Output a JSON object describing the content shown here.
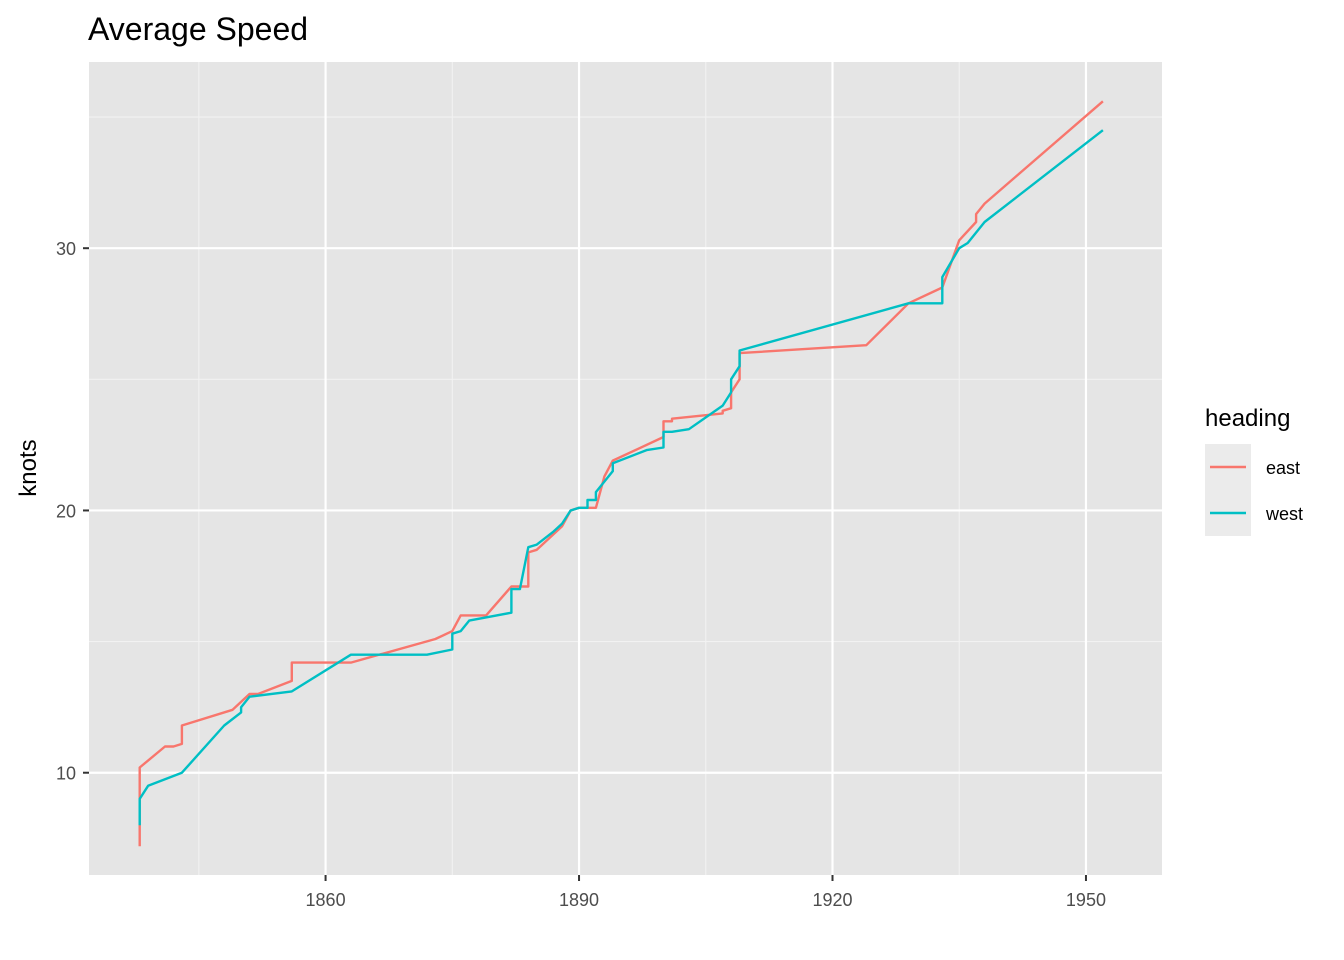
{
  "chart_data": {
    "type": "line",
    "title": "Average Speed",
    "xlabel": "",
    "ylabel": "knots",
    "xlim": [
      1832,
      1959
    ],
    "ylim": [
      6.1,
      37.1
    ],
    "x_ticks": [
      1860,
      1890,
      1920,
      1950
    ],
    "x_tick_labels": [
      "1860",
      "1890",
      "1920",
      "1950"
    ],
    "y_ticks": [
      10,
      20,
      30
    ],
    "y_tick_labels": [
      "10",
      "20",
      "30"
    ],
    "grid": true,
    "legend": {
      "title": "heading",
      "position": "right"
    },
    "series": [
      {
        "name": "east",
        "color": "#F8766D",
        "points": [
          [
            1838,
            7.2
          ],
          [
            1838,
            10.2
          ],
          [
            1841,
            11.0
          ],
          [
            1842,
            11.0
          ],
          [
            1843,
            11.1
          ],
          [
            1843,
            11.8
          ],
          [
            1849,
            12.4
          ],
          [
            1851,
            13.0
          ],
          [
            1852,
            13.0
          ],
          [
            1856,
            13.5
          ],
          [
            1856,
            14.2
          ],
          [
            1863,
            14.2
          ],
          [
            1873,
            15.1
          ],
          [
            1875,
            15.4
          ],
          [
            1876,
            16.0
          ],
          [
            1879,
            16.0
          ],
          [
            1882,
            17.1
          ],
          [
            1884,
            17.1
          ],
          [
            1884,
            18.4
          ],
          [
            1885,
            18.5
          ],
          [
            1888,
            19.4
          ],
          [
            1889,
            20.0
          ],
          [
            1890,
            20.1
          ],
          [
            1892,
            20.1
          ],
          [
            1893,
            21.3
          ],
          [
            1894,
            21.9
          ],
          [
            1900,
            22.8
          ],
          [
            1900,
            23.4
          ],
          [
            1901,
            23.4
          ],
          [
            1901,
            23.5
          ],
          [
            1907,
            23.7
          ],
          [
            1907,
            23.8
          ],
          [
            1908,
            23.9
          ],
          [
            1908,
            24.5
          ],
          [
            1909,
            25.0
          ],
          [
            1909,
            26.0
          ],
          [
            1924,
            26.3
          ],
          [
            1929,
            27.9
          ],
          [
            1933,
            28.5
          ],
          [
            1935,
            30.3
          ],
          [
            1937,
            31.0
          ],
          [
            1937,
            31.3
          ],
          [
            1938,
            31.7
          ],
          [
            1952,
            35.6
          ]
        ]
      },
      {
        "name": "west",
        "color": "#00BFC4",
        "points": [
          [
            1838,
            8.0
          ],
          [
            1838,
            9.0
          ],
          [
            1839,
            9.5
          ],
          [
            1843,
            10.0
          ],
          [
            1848,
            11.8
          ],
          [
            1850,
            12.3
          ],
          [
            1850,
            12.5
          ],
          [
            1851,
            12.9
          ],
          [
            1856,
            13.1
          ],
          [
            1863,
            14.5
          ],
          [
            1872,
            14.5
          ],
          [
            1875,
            14.7
          ],
          [
            1875,
            15.3
          ],
          [
            1876,
            15.4
          ],
          [
            1877,
            15.8
          ],
          [
            1882,
            16.1
          ],
          [
            1882,
            17.0
          ],
          [
            1883,
            17.0
          ],
          [
            1884,
            18.6
          ],
          [
            1885,
            18.7
          ],
          [
            1887,
            19.2
          ],
          [
            1888,
            19.5
          ],
          [
            1889,
            20.0
          ],
          [
            1890,
            20.1
          ],
          [
            1891,
            20.1
          ],
          [
            1891,
            20.4
          ],
          [
            1892,
            20.4
          ],
          [
            1892,
            20.7
          ],
          [
            1894,
            21.5
          ],
          [
            1894,
            21.8
          ],
          [
            1898,
            22.3
          ],
          [
            1900,
            22.4
          ],
          [
            1900,
            23.0
          ],
          [
            1901,
            23.0
          ],
          [
            1903,
            23.1
          ],
          [
            1907,
            24.0
          ],
          [
            1908,
            24.5
          ],
          [
            1908,
            25.0
          ],
          [
            1909,
            25.5
          ],
          [
            1909,
            26.1
          ],
          [
            1929,
            27.9
          ],
          [
            1933,
            27.9
          ],
          [
            1933,
            28.9
          ],
          [
            1935,
            30.0
          ],
          [
            1936,
            30.2
          ],
          [
            1938,
            31.0
          ],
          [
            1952,
            34.5
          ]
        ]
      }
    ]
  }
}
